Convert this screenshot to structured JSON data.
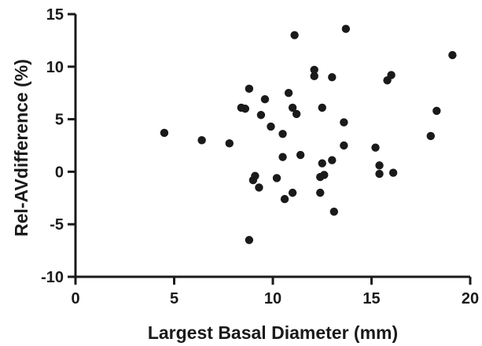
{
  "chart_data": {
    "type": "scatter",
    "xlabel": "Largest Basal Diameter (mm)",
    "ylabel": "Rel-AVdifference (%)",
    "xlim": [
      0,
      20
    ],
    "ylim": [
      -10,
      15
    ],
    "xticks": [
      0,
      5,
      10,
      15,
      20
    ],
    "yticks": [
      -10,
      -5,
      0,
      5,
      10,
      15
    ],
    "grid": false,
    "marker_color": "#1a1a1a",
    "series": [
      {
        "points": [
          {
            "x": 4.5,
            "y": 3.7
          },
          {
            "x": 6.4,
            "y": 3.0
          },
          {
            "x": 7.8,
            "y": 2.7
          },
          {
            "x": 8.4,
            "y": 6.1
          },
          {
            "x": 8.6,
            "y": 6.0
          },
          {
            "x": 8.8,
            "y": 7.9
          },
          {
            "x": 8.8,
            "y": -6.5
          },
          {
            "x": 9.0,
            "y": -0.8
          },
          {
            "x": 9.1,
            "y": -0.4
          },
          {
            "x": 9.3,
            "y": -1.5
          },
          {
            "x": 9.4,
            "y": 5.4
          },
          {
            "x": 9.6,
            "y": 6.9
          },
          {
            "x": 9.9,
            "y": 4.3
          },
          {
            "x": 10.2,
            "y": -0.6
          },
          {
            "x": 10.5,
            "y": 1.4
          },
          {
            "x": 10.5,
            "y": 3.6
          },
          {
            "x": 10.6,
            "y": -2.6
          },
          {
            "x": 10.8,
            "y": 7.5
          },
          {
            "x": 11.0,
            "y": 6.1
          },
          {
            "x": 11.0,
            "y": -2.0
          },
          {
            "x": 11.1,
            "y": 13.0
          },
          {
            "x": 11.2,
            "y": 5.5
          },
          {
            "x": 11.4,
            "y": 1.6
          },
          {
            "x": 12.1,
            "y": 9.1
          },
          {
            "x": 12.1,
            "y": 9.7
          },
          {
            "x": 12.4,
            "y": -0.5
          },
          {
            "x": 12.4,
            "y": -2.0
          },
          {
            "x": 12.5,
            "y": 6.1
          },
          {
            "x": 12.5,
            "y": 0.8
          },
          {
            "x": 12.6,
            "y": -0.3
          },
          {
            "x": 13.0,
            "y": 1.1
          },
          {
            "x": 13.0,
            "y": 9.0
          },
          {
            "x": 13.1,
            "y": -3.8
          },
          {
            "x": 13.6,
            "y": 4.7
          },
          {
            "x": 13.6,
            "y": 2.5
          },
          {
            "x": 13.7,
            "y": 13.6
          },
          {
            "x": 15.2,
            "y": 2.3
          },
          {
            "x": 15.4,
            "y": 0.6
          },
          {
            "x": 15.4,
            "y": -0.2
          },
          {
            "x": 15.8,
            "y": 8.7
          },
          {
            "x": 16.0,
            "y": 9.2
          },
          {
            "x": 16.1,
            "y": -0.1
          },
          {
            "x": 18.0,
            "y": 3.4
          },
          {
            "x": 18.3,
            "y": 5.8
          },
          {
            "x": 19.1,
            "y": 11.1
          }
        ]
      }
    ]
  }
}
